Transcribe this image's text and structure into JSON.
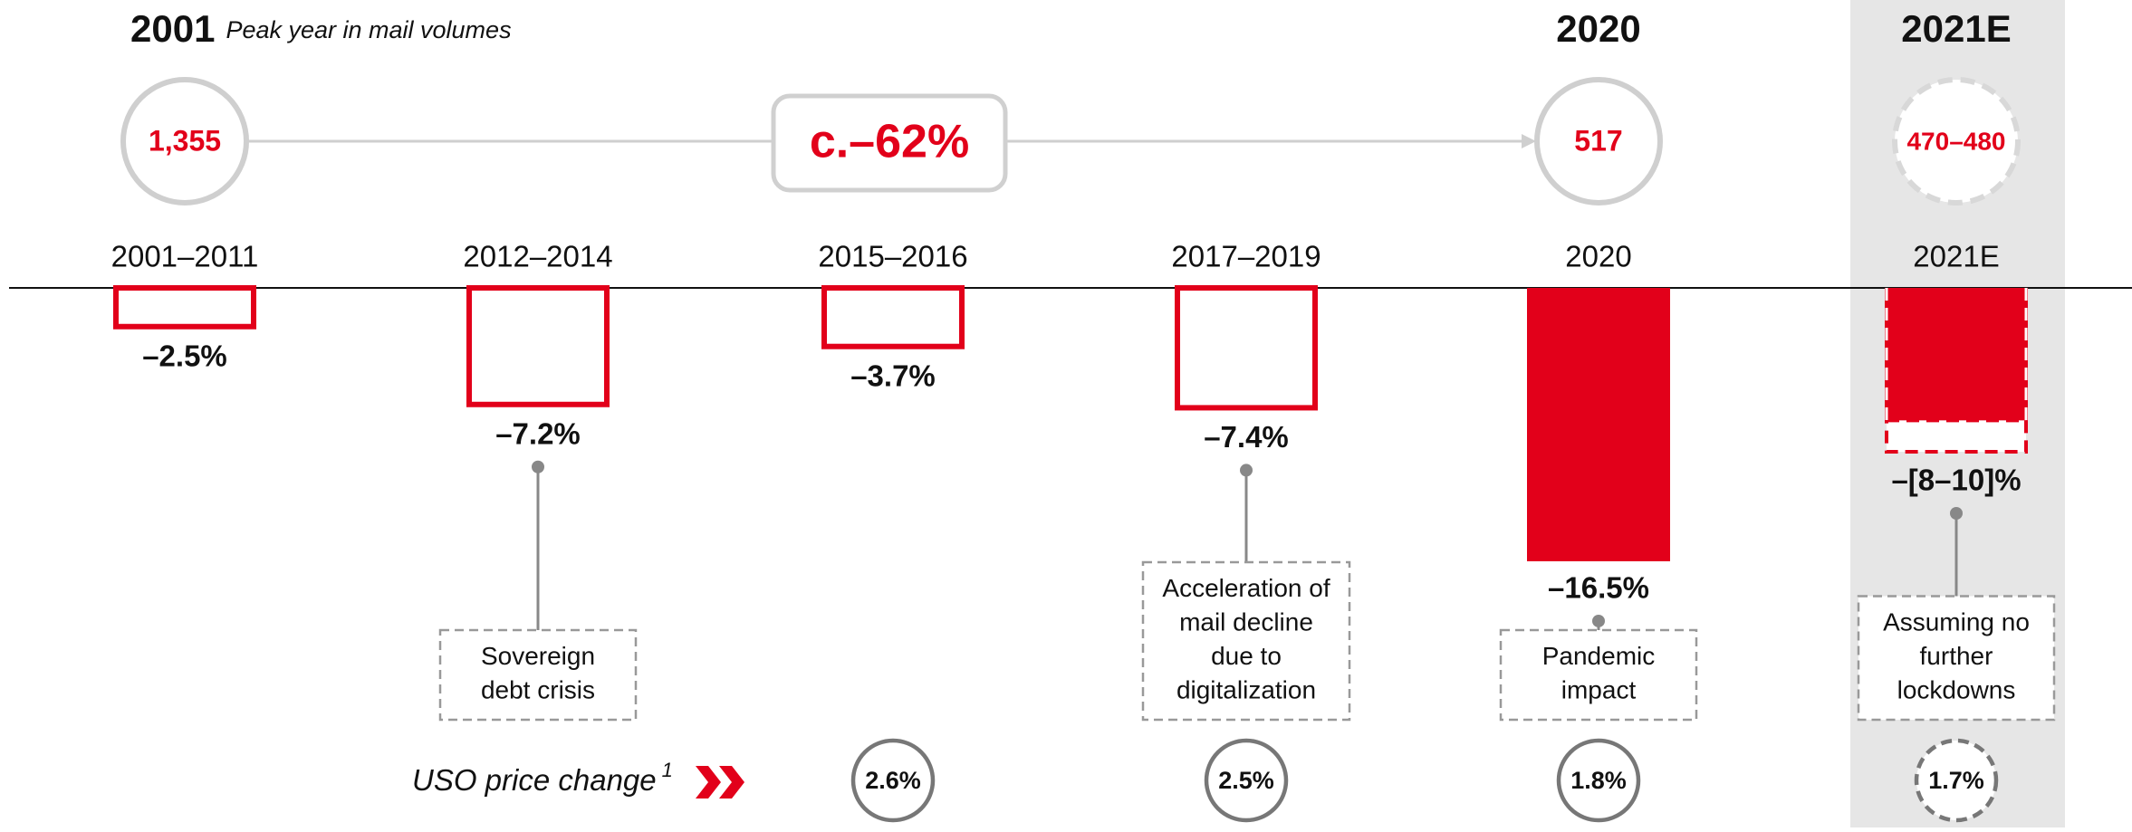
{
  "header": {
    "start": {
      "year": "2001",
      "note": "Peak year in mail volumes",
      "volume": "1,355"
    },
    "change": "c.–62%",
    "current": {
      "year": "2020",
      "volume": "517"
    },
    "forecast": {
      "year": "2021E",
      "volume": "470–480"
    }
  },
  "chart_data": {
    "type": "bar",
    "categories": [
      "2001–2011",
      "2012–2014",
      "2015–2016",
      "2017–2019",
      "2020",
      "2021E"
    ],
    "values": [
      -2.5,
      -7.2,
      -3.7,
      -7.4,
      -16.5,
      -8
    ],
    "range_ends": [
      null,
      null,
      null,
      null,
      null,
      -10
    ],
    "value_labels": [
      "–2.5%",
      "–7.2%",
      "–3.7%",
      "–7.4%",
      "–16.5%",
      "–[8–10]%"
    ],
    "color": "#e2001a",
    "filled": [
      false,
      false,
      false,
      false,
      true,
      true
    ],
    "annotations": [
      null,
      [
        "Sovereign",
        "debt crisis"
      ],
      null,
      [
        "Acceleration of",
        "mail decline",
        "due to",
        "digitalization"
      ],
      [
        "Pandemic",
        "impact"
      ],
      [
        "Assuming no",
        "further",
        "lockdowns"
      ]
    ],
    "price_label": "USO price change",
    "price_footnote": "1",
    "price_changes": [
      null,
      null,
      "2.6%",
      "2.5%",
      "1.8%",
      "1.7%"
    ]
  }
}
